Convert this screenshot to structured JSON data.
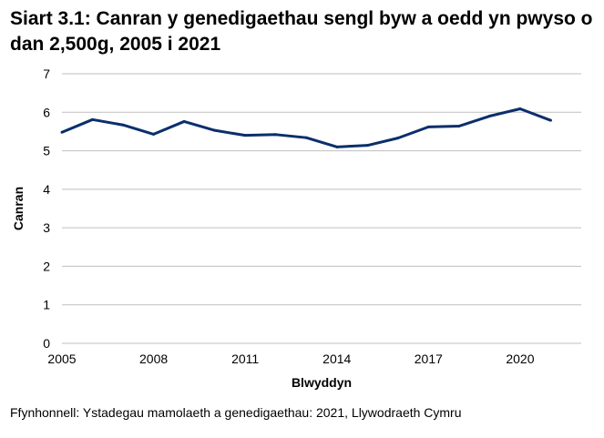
{
  "chart_data": {
    "type": "line",
    "title": "Siart 3.1: Canran y genedigaethau sengl byw a oedd yn pwyso o dan 2,500g, 2005 i 2021",
    "xlabel": "Blwyddyn",
    "ylabel": "Canran",
    "x": [
      2005,
      2006,
      2007,
      2008,
      2009,
      2010,
      2011,
      2012,
      2013,
      2014,
      2015,
      2016,
      2017,
      2018,
      2019,
      2020,
      2021
    ],
    "series": [
      {
        "values": [
          5.48,
          5.81,
          5.67,
          5.43,
          5.76,
          5.53,
          5.4,
          5.42,
          5.34,
          5.1,
          5.14,
          5.33,
          5.62,
          5.64,
          5.9,
          6.09,
          5.79
        ],
        "color": "#0b2f6b"
      }
    ],
    "ylim": [
      0,
      7
    ],
    "yticks": [
      0,
      1,
      2,
      3,
      4,
      5,
      6,
      7
    ],
    "xticks": [
      2005,
      2008,
      2011,
      2014,
      2017,
      2020
    ],
    "xlim": [
      2005,
      2022
    ],
    "grid": true,
    "legend": "none"
  },
  "source": "Ffynhonnell: Ystadegau mamolaeth a genedigaethau: 2021, Llywodraeth Cymru"
}
